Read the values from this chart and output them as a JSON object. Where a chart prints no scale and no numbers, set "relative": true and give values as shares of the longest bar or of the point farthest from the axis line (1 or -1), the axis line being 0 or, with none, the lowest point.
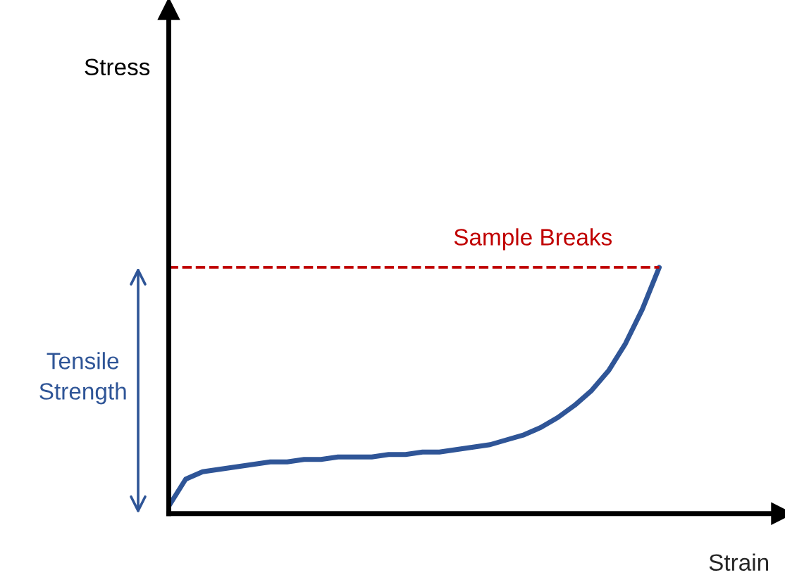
{
  "chart_data": {
    "type": "line",
    "relative": true,
    "xlabel": "Strain",
    "categories": [
      null,
      null,
      null,
      null,
      null,
      null,
      null,
      null,
      null,
      null,
      null,
      null,
      null,
      null,
      null,
      null,
      null,
      null,
      null,
      null,
      null,
      null,
      null,
      null,
      null,
      null,
      null,
      null,
      null,
      null
    ],
    "series": [
      {
        "color": "#2f5597",
        "values": [
          0.03,
          0.14,
          0.17,
          0.18,
          0.19,
          0.2,
          0.21,
          0.21,
          0.22,
          0.22,
          0.23,
          0.23,
          0.23,
          0.24,
          0.24,
          0.25,
          0.25,
          0.26,
          0.27,
          0.28,
          0.3,
          0.32,
          0.35,
          0.39,
          0.44,
          0.5,
          0.58,
          0.69,
          0.83,
          1
        ]
      }
    ],
    "ref_lines": [
      {
        "axis": "y",
        "value": 1,
        "label": "Sample Breaks",
        "color": "#c00000",
        "line_style": "dashed"
      }
    ],
    "annotations": [
      "Stress",
      "Tensile Strength"
    ],
    "marker": "none",
    "line_style": "solid",
    "grid": false,
    "legend": false
  }
}
